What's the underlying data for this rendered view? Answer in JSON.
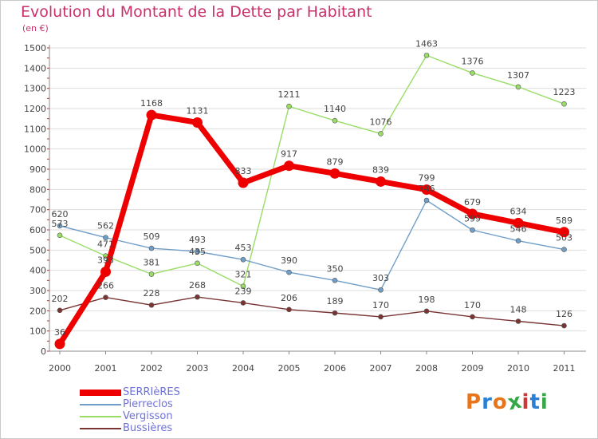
{
  "header": {
    "title": "Evolution du Montant de la Dette par Habitant",
    "subtitle": "(en €)"
  },
  "logo": {
    "text": "Proxiti",
    "colors": [
      "#e8751a",
      "#2a7fd6",
      "#e8751a",
      "#33a845",
      "#c93a3a",
      "#2a7fd6",
      "#33a845"
    ]
  },
  "chart_data": {
    "type": "line",
    "title": "Evolution du Montant de la Dette par Habitant",
    "subtitle": "(en €)",
    "xlabel": "",
    "ylabel": "",
    "x": [
      "2000",
      "2001",
      "2002",
      "2003",
      "2004",
      "2005",
      "2006",
      "2007",
      "2008",
      "2009",
      "2010",
      "2011"
    ],
    "y_ticks": [
      0,
      100,
      200,
      300,
      400,
      500,
      600,
      700,
      800,
      900,
      1000,
      1100,
      1200,
      1300,
      1400,
      1500
    ],
    "ylim": [
      0,
      1500
    ],
    "grid": "horizontal",
    "legend_position": "bottom-left",
    "series": [
      {
        "name": "Bussières",
        "color": "#7a3434",
        "values": [
          202,
          266,
          228,
          268,
          239,
          206,
          189,
          170,
          198,
          170,
          148,
          126
        ],
        "labels": [
          "202",
          "266",
          "228",
          "268",
          "239",
          "206",
          "189",
          "170",
          "198",
          "170",
          "148",
          "126"
        ]
      },
      {
        "name": "Vergisson",
        "color": "#99dd66",
        "values": [
          573,
          471,
          381,
          435,
          321,
          1211,
          1140,
          1076,
          1463,
          1376,
          1307,
          1223
        ],
        "labels": [
          "573",
          "471",
          "381",
          "435",
          "321",
          "1211",
          "1140",
          "1076",
          "1463",
          "1376",
          "1307",
          "1223"
        ]
      },
      {
        "name": "Pierreclos",
        "color": "#6f9ec9",
        "values": [
          620,
          562,
          509,
          493,
          453,
          390,
          350,
          303,
          746,
          599,
          546,
          503
        ],
        "labels": [
          "620",
          "562",
          "509",
          "493",
          "453",
          "390",
          "350",
          "303",
          "746",
          "599",
          "546",
          "503"
        ]
      },
      {
        "name": "SERRIèRES",
        "color": "#ee0000",
        "values": [
          36,
          393,
          1168,
          1131,
          833,
          917,
          879,
          839,
          799,
          679,
          634,
          589
        ],
        "labels": [
          "36",
          "393",
          "1168",
          "1131",
          "833",
          "917",
          "879",
          "839",
          "799",
          "679",
          "634",
          "589"
        ]
      }
    ],
    "legend": [
      "SERRIèRES",
      "Pierreclos",
      "Vergisson",
      "Bussières"
    ]
  }
}
